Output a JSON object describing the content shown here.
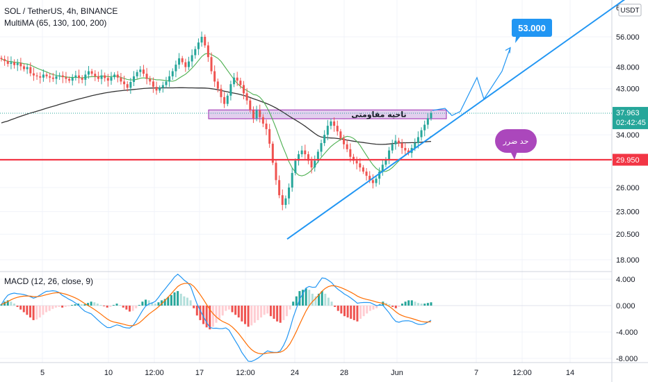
{
  "header": {
    "title": "SOL / TetherUS, 4h, BINANCE",
    "indicator": "MultiMA (65, 130, 100, 200)"
  },
  "macd": {
    "title": "MACD (12, 26, close, 9)"
  },
  "currency_badge": "USDT",
  "colors": {
    "up": "#26a69a",
    "down": "#ef5350",
    "trendline": "#2196f3",
    "support": "#f23645",
    "ma_green": "#4caf50",
    "ma_dark": "#333333",
    "zone_fill": "#d8bfe8",
    "zone_stroke": "#9c27b0",
    "macd_line": "#2196f3",
    "signal_line": "#ff6d00",
    "price_badge": "#26a69a",
    "stop_bubble": "#ab47bc",
    "target_badge": "#2196f3"
  },
  "chart_data": {
    "type": "candlestick",
    "y_ticks": [
      "56.000",
      "48.000",
      "43.000",
      "37.963",
      "34.000",
      "29.950",
      "26.000",
      "23.000",
      "20.500",
      "18.000"
    ],
    "y_ticks_plain": [
      56,
      48,
      43,
      34,
      26,
      23,
      20.5,
      18
    ],
    "x_ticks": [
      "5",
      "10",
      "12:00",
      "17",
      "12:00",
      "24",
      "28",
      "Jun",
      "7",
      "12:00",
      "14"
    ],
    "top_partial_tick": "6",
    "current_price": "37.963",
    "countdown": "02:42:45",
    "support_level": "29.950",
    "support_value": 29.95,
    "resistance_zone": {
      "label": "ناحیه مقاومتی",
      "low": 36.9,
      "high": 38.6
    },
    "stop_loss_label": "حد ضرر",
    "target_label": "53.000",
    "trendline": {
      "start_value": 20.0,
      "end_value": 68.0
    },
    "path_values": [
      38.5,
      38.9,
      37.5,
      38.3,
      45.5,
      40.8,
      47.0,
      53.0
    ],
    "macd_axis_ticks": [
      "4.000",
      "0.000",
      "-4.000",
      "-8.000"
    ],
    "macd_tick_values": [
      4,
      0,
      -4,
      -8
    ],
    "prices": [
      50,
      49.5,
      48.8,
      49.2,
      48.5,
      49,
      48.2,
      47.5,
      48,
      46.5,
      46,
      45.8,
      45.5,
      46.2,
      45.8,
      45.5,
      45.2,
      45.8,
      46,
      45.6,
      45.2,
      44.8,
      45.5,
      46,
      45.4,
      45,
      46.2,
      47,
      46.4,
      45.8,
      45.2,
      46,
      45.4,
      44.8,
      45.6,
      46.2,
      45.5,
      44.6,
      44,
      43.2,
      44.5,
      45.8,
      46.8,
      47.4,
      46.4,
      45.2,
      44.6,
      43.4,
      42.6,
      43.2,
      43.8,
      44.6,
      45.8,
      47,
      48.6,
      50.2,
      49.2,
      48,
      49.4,
      51,
      52.6,
      54.4,
      56,
      53.6,
      50.5,
      47,
      44.6,
      43,
      41.2,
      39.8,
      41.5,
      44,
      45.5,
      44.8,
      43.8,
      42,
      40.5,
      38.6,
      37,
      38.5,
      37.2,
      36,
      35,
      32.5,
      29.5,
      27,
      25,
      23.8,
      24.6,
      26,
      28,
      29.8,
      30.8,
      31.4,
      30.8,
      29.8,
      28.8,
      29.8,
      31.2,
      32.6,
      34,
      35.6,
      36.4,
      35.6,
      34.6,
      33.4,
      32.4,
      31.6,
      30.4,
      29.8,
      29.4,
      28.8,
      28.2,
      27.6,
      27,
      26.6,
      27.2,
      28.2,
      29.2,
      30,
      31.4,
      32.4,
      33,
      32.6,
      31.8,
      31.4,
      31,
      31.8,
      32.6,
      33.6,
      34.8,
      35.8,
      37,
      37.963
    ],
    "macd_hist": [
      0.2,
      0.6,
      0.8,
      0.6,
      0.3,
      -0.2,
      -0.6,
      -1.0,
      -1.4,
      -1.8,
      -2.2,
      -2.1,
      -1.8,
      -1.4,
      -1.0,
      -0.8,
      -0.5,
      -0.3,
      -0.2,
      -0.3,
      -0.2,
      -0.1,
      0.1,
      0.2,
      0.3,
      0.2,
      0.2,
      0.4,
      0.6,
      0.5,
      0.3,
      0.1,
      -0.1,
      -0.3,
      -0.2,
      0.1,
      0.3,
      0.1,
      -0.3,
      -0.6,
      -0.9,
      -0.8,
      -0.4,
      0.1,
      0.6,
      0.9,
      0.8,
      0.5,
      0.3,
      0.5,
      0.8,
      1.0,
      1.3,
      1.6,
      2.0,
      2.2,
      1.8,
      1.4,
      1.2,
      0.8,
      -0.4,
      -1.5,
      -2.2,
      -2.8,
      -3.3,
      -3.6,
      -3.2,
      -2.6,
      -2.1,
      -1.5,
      -0.8,
      -0.6,
      -1.0,
      -1.4,
      -1.8,
      -2.4,
      -2.8,
      -3.2,
      -3.0,
      -2.6,
      -2.2,
      -1.8,
      -1.4,
      -1.2,
      -1.6,
      -2.0,
      -2.4,
      -2.6,
      -2.2,
      -1.6,
      -0.6,
      0.6,
      1.4,
      2.2,
      2.4,
      2.6,
      2.4,
      1.8,
      1.4,
      1.8,
      2.2,
      1.8,
      1.2,
      0.6,
      -0.2,
      -0.8,
      -1.2,
      -1.6,
      -1.8,
      -2.0,
      -2.2,
      -2.4,
      -2.0,
      -1.6,
      -1.2,
      -0.8,
      -0.6,
      -0.4,
      0.2,
      0.6,
      0.4,
      0.2,
      -0.2,
      -0.4,
      -0.2,
      0.3,
      0.6,
      0.8,
      0.8,
      0.6,
      0.4,
      0.3,
      0.3,
      0.4,
      0.5
    ]
  }
}
